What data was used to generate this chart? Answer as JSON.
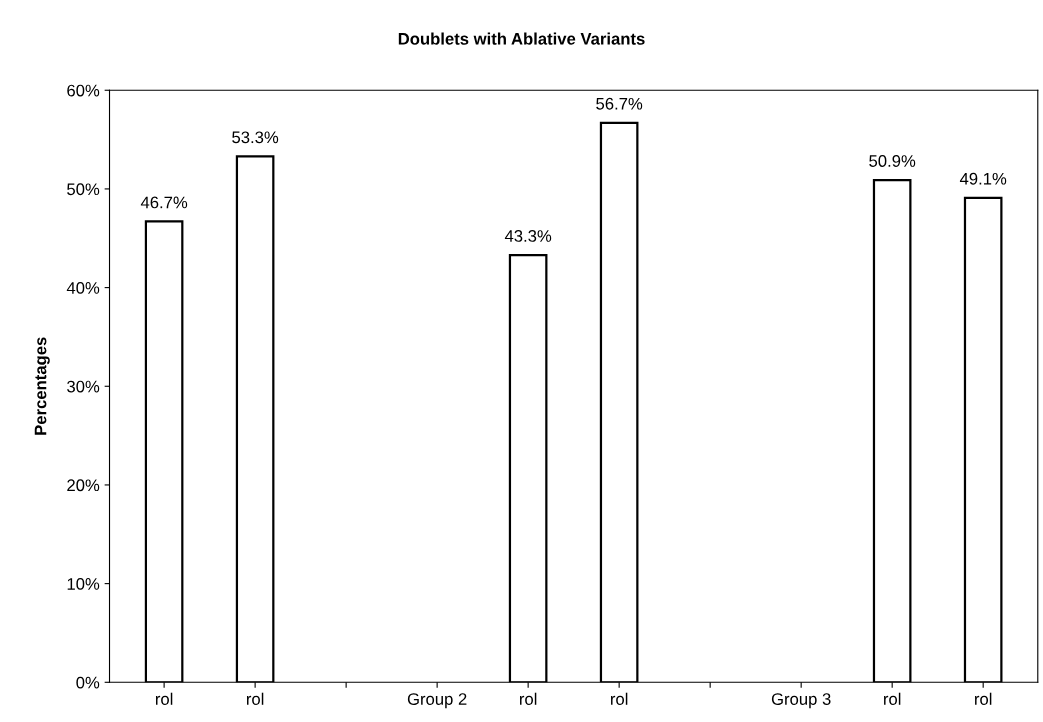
{
  "chart_data": {
    "type": "bar",
    "title": "Doublets with Ablative Variants",
    "ylabel": "Percentages",
    "categories": [
      "rol",
      "rol",
      null,
      "Group 2",
      "rol",
      "rol",
      null,
      "Group 3",
      "rol",
      "rol"
    ],
    "values": [
      46.7,
      53.3,
      null,
      null,
      43.3,
      56.7,
      null,
      null,
      50.9,
      49.1
    ],
    "value_labels": [
      "46.7%",
      "53.3%",
      null,
      null,
      "43.3%",
      "56.7%",
      null,
      null,
      "50.9%",
      "49.1%"
    ],
    "color": "#ffffff",
    "ylim": [
      0,
      60
    ],
    "yticks": [
      {
        "value": 0,
        "label": "0%"
      },
      {
        "value": 10,
        "label": "10%"
      },
      {
        "value": 20,
        "label": "20%"
      },
      {
        "value": 30,
        "label": "30%"
      },
      {
        "value": 40,
        "label": "40%"
      },
      {
        "value": 50,
        "label": "50%"
      },
      {
        "value": 60,
        "label": "60%"
      }
    ],
    "grid": false,
    "legend": false
  }
}
